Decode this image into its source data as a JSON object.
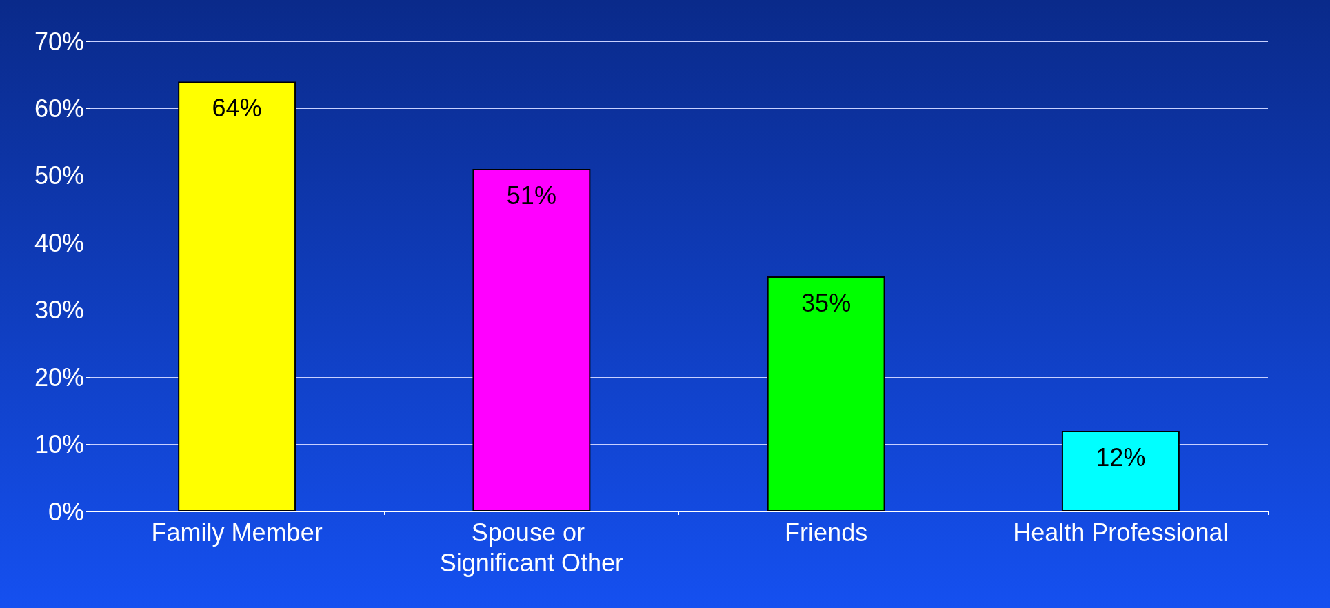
{
  "chart_data": {
    "type": "bar",
    "categories": [
      "Family Member",
      "Spouse or Significant Other",
      "Friends",
      "Health Professional"
    ],
    "values": [
      64,
      51,
      35,
      12
    ],
    "colors": [
      "#ffff00",
      "#ff00ff",
      "#00ff00",
      "#00ffff"
    ],
    "value_labels": [
      "64%",
      "51%",
      "35%",
      "12%"
    ],
    "ylim": [
      0,
      70
    ],
    "yticks": [
      {
        "value": 0,
        "label": "0%"
      },
      {
        "value": 10,
        "label": "10%"
      },
      {
        "value": 20,
        "label": "20%"
      },
      {
        "value": 30,
        "label": "30%"
      },
      {
        "value": 40,
        "label": "40%"
      },
      {
        "value": 50,
        "label": "50%"
      },
      {
        "value": 60,
        "label": "60%"
      },
      {
        "value": 70,
        "label": "70%"
      }
    ],
    "grid": "y"
  }
}
